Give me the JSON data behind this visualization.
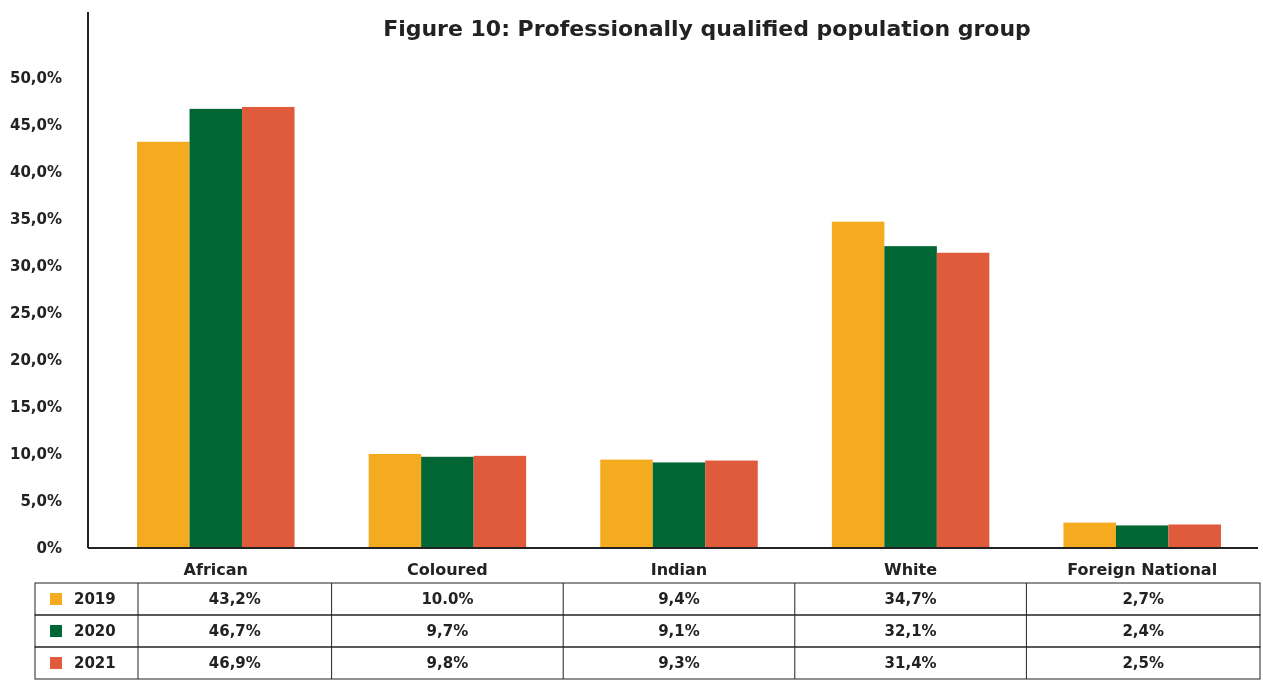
{
  "chart_data": {
    "type": "bar",
    "title": "Figure 10: Professionally qualified population group",
    "categories": [
      "African",
      "Coloured",
      "Indian",
      "White",
      "Foreign National"
    ],
    "series": [
      {
        "name": "2019",
        "color": "#f4ab1f",
        "values": [
          43.2,
          10.0,
          9.4,
          34.7,
          2.7
        ],
        "value_labels": [
          "43,2%",
          "10.0%",
          "9,4%",
          "34,7%",
          "2,7%"
        ]
      },
      {
        "name": "2020",
        "color": "#006633",
        "values": [
          46.7,
          9.7,
          9.1,
          32.1,
          2.4
        ],
        "value_labels": [
          "46,7%",
          "9,7%",
          "9,1%",
          "32,1%",
          "2,4%"
        ]
      },
      {
        "name": "2021",
        "color": "#e05a3c",
        "values": [
          46.9,
          9.8,
          9.3,
          31.4,
          2.5
        ],
        "value_labels": [
          "46,9%",
          "9,8%",
          "9,3%",
          "31,4%",
          "2,5%"
        ]
      }
    ],
    "ylim": [
      0,
      57
    ],
    "yticks": [
      {
        "value": 0,
        "label": "0%"
      },
      {
        "value": 5,
        "label": "5,0%"
      },
      {
        "value": 10,
        "label": "10,0%"
      },
      {
        "value": 15,
        "label": "15,0%"
      },
      {
        "value": 20,
        "label": "20,0%"
      },
      {
        "value": 25,
        "label": "25,0%"
      },
      {
        "value": 30,
        "label": "30,0%"
      },
      {
        "value": 35,
        "label": "35,0%"
      },
      {
        "value": 40,
        "label": "40,0%"
      },
      {
        "value": 45,
        "label": "45,0%"
      },
      {
        "value": 50,
        "label": "50,0%"
      }
    ],
    "grid": false,
    "legend": "bottom"
  }
}
